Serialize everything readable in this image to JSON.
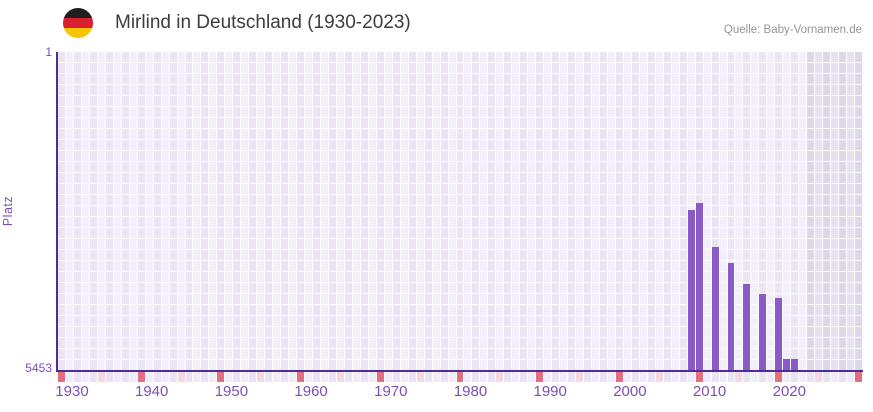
{
  "header": {
    "title": "Mirlind in Deutschland (1930-2023)",
    "source": "Quelle: Baby-Vornamen.de",
    "flag": "germany-flag"
  },
  "chart_data": {
    "type": "bar",
    "title": "Mirlind in Deutschland (1930-2023)",
    "xlabel": "",
    "ylabel": "Platz",
    "y_axis": {
      "top_label": "1",
      "bottom_label": "5453",
      "best_rank": 1,
      "worst_rank": 5453,
      "inverted": true
    },
    "x_axis": {
      "start_year": 1930,
      "end_year": 2030,
      "data_end_year": 2023,
      "decade_tick_years": [
        1930,
        1940,
        1950,
        1960,
        1970,
        1980,
        1990,
        2000,
        2010,
        2020,
        2030
      ],
      "half_decade_tick_years": [
        1935,
        1945,
        1955,
        1965,
        1975,
        1985,
        1995,
        2005,
        2015,
        2025
      ],
      "tick_labels": [
        "1930",
        "1940",
        "1950",
        "1960",
        "1970",
        "1980",
        "1990",
        "2000",
        "2010",
        "2020"
      ]
    },
    "series": [
      {
        "name": "Platz",
        "points": [
          {
            "year": 2009,
            "rank": 2710
          },
          {
            "year": 2010,
            "rank": 2590
          },
          {
            "year": 2012,
            "rank": 3340
          },
          {
            "year": 2014,
            "rank": 3620
          },
          {
            "year": 2016,
            "rank": 3980
          },
          {
            "year": 2018,
            "rank": 4150
          },
          {
            "year": 2020,
            "rank": 4220
          },
          {
            "year": 2021,
            "rank": 5260
          },
          {
            "year": 2022,
            "rank": 5260
          }
        ]
      }
    ],
    "grid": true,
    "legend_position": "none",
    "colors": {
      "bar": "#8a5bc8",
      "axis_line": "#4f2d96",
      "axis_text": "#7b50b5",
      "cell_light": "#f2eefa",
      "cell_dark": "#eae4f5",
      "future_cell_light": "#e6e1f0",
      "future_cell_dark": "#ded7ea",
      "tick_major": "#e26e7e",
      "tick_minor": "#f2d7e2",
      "strip_light": "#f0ebf8",
      "strip_dark": "#e9e2f3",
      "grid_line": "#ffffff",
      "title_text": "#3d3d3d",
      "source_text": "#96939b",
      "flag_black": "#1f1f1f",
      "flag_red": "#d7212e",
      "flag_gold": "#f8c300"
    }
  }
}
